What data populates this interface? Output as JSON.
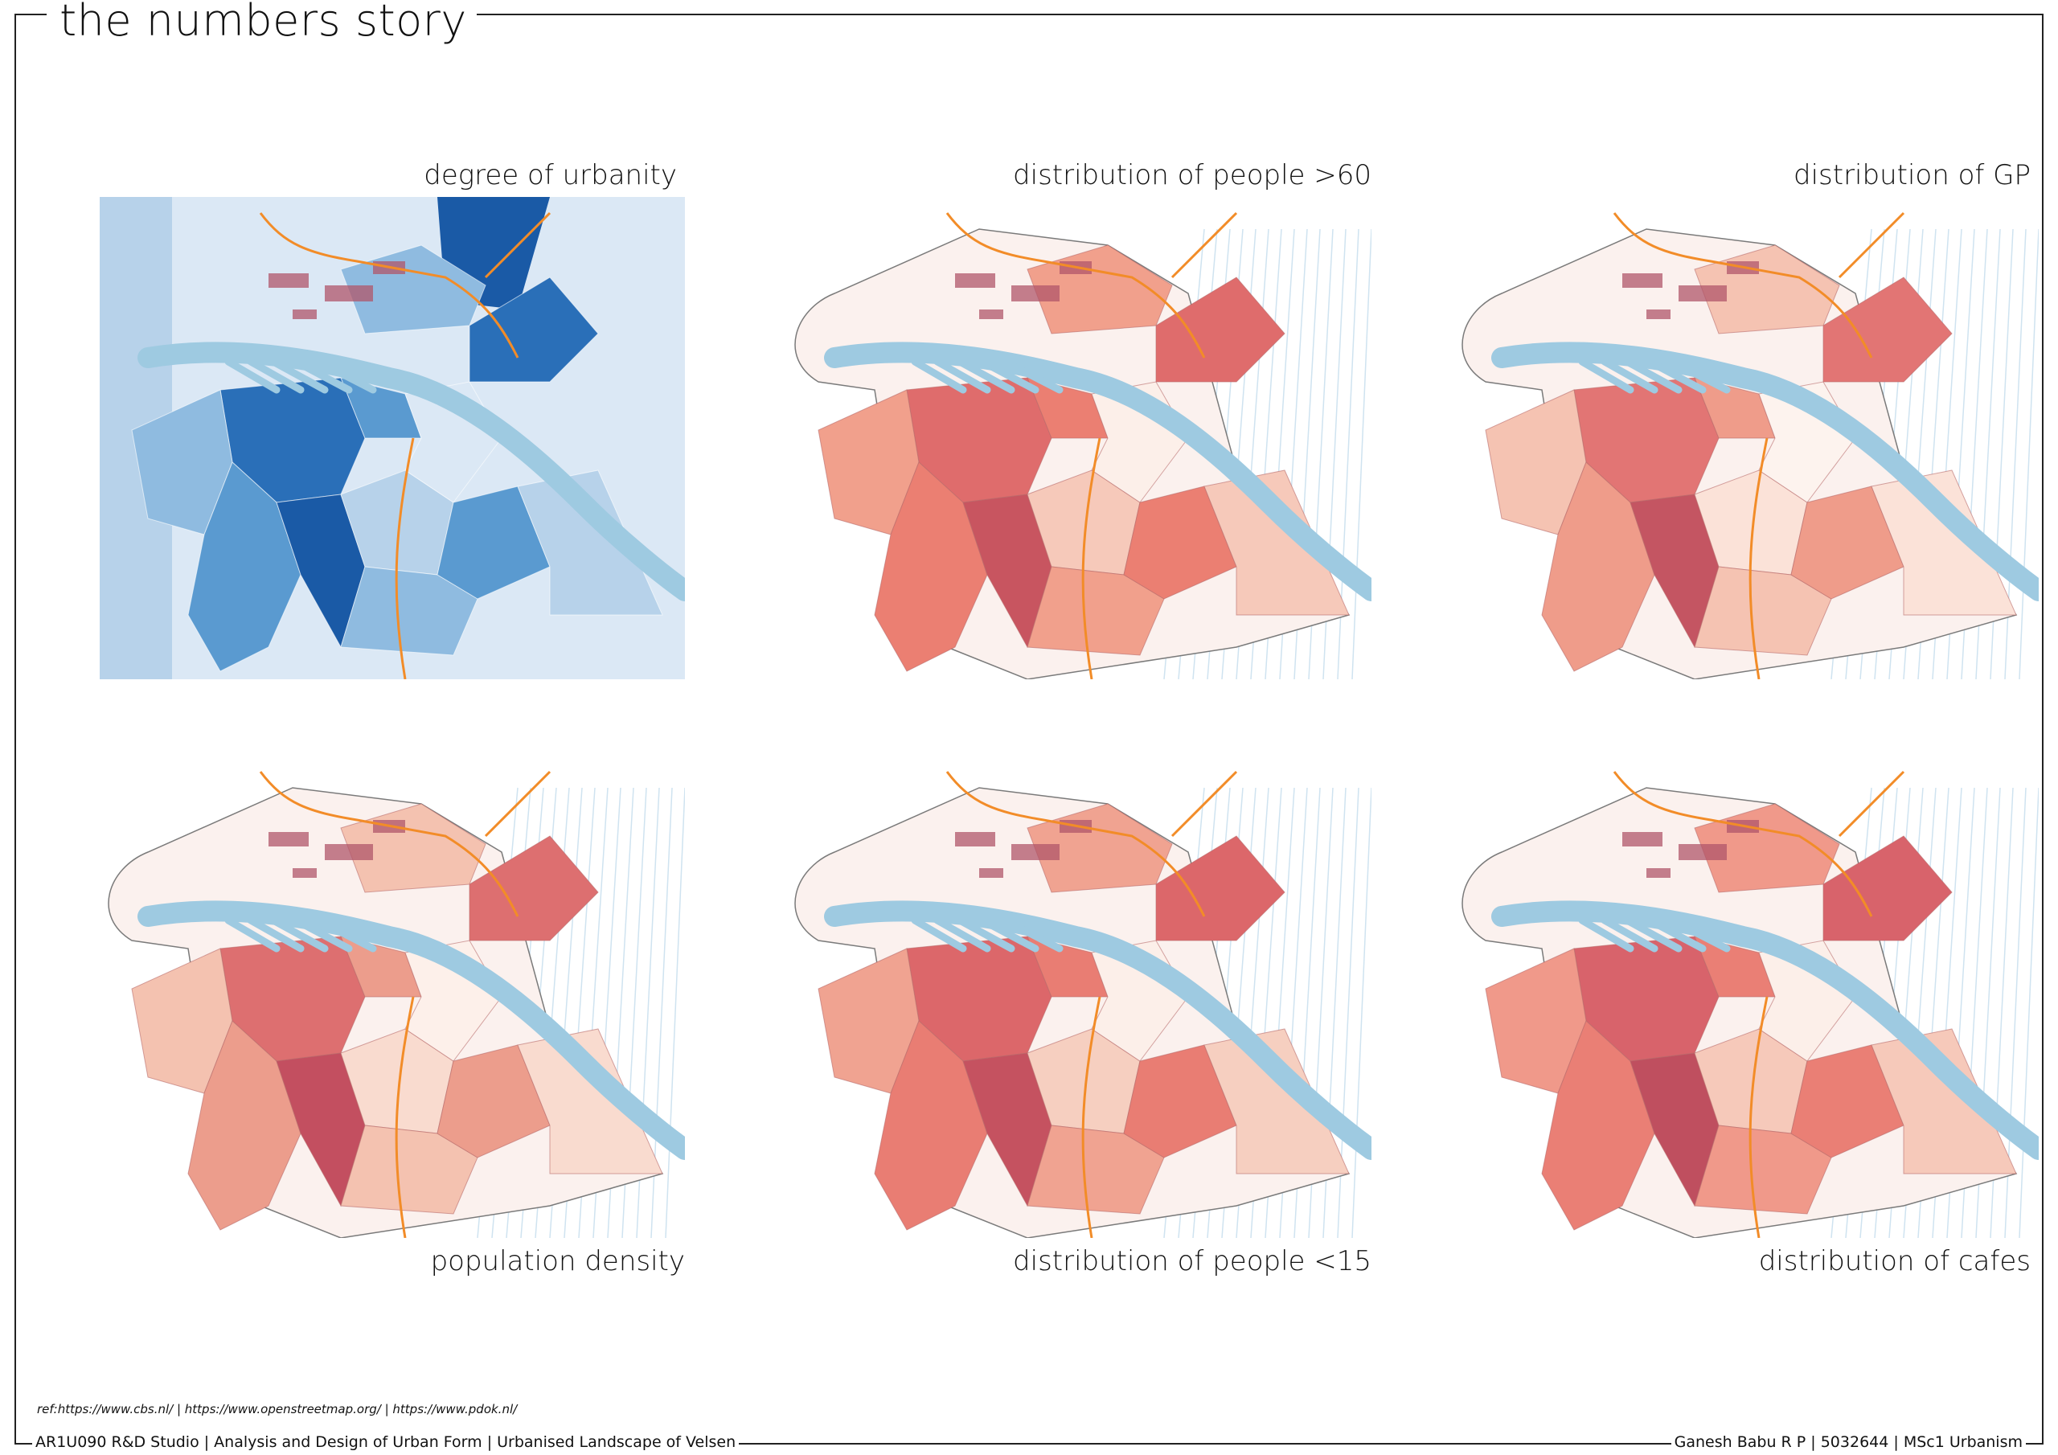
{
  "title": "the numbers story",
  "maps": [
    {
      "id": "urbanity",
      "label": "degree of urbanity",
      "scheme": "blue",
      "colors": [
        "#dbe8f5",
        "#b7d2ea",
        "#8fbbe0",
        "#5a9ad0",
        "#2a6fb8",
        "#1a5aa6"
      ]
    },
    {
      "id": "people60",
      "label": "distribution of people >60",
      "scheme": "red",
      "colors": [
        "#fcefe9",
        "#f6c9ba",
        "#f1a08c",
        "#eb7f72",
        "#df6c6c",
        "#c85560"
      ]
    },
    {
      "id": "gp",
      "label": "distribution of GP",
      "scheme": "red",
      "colors": [
        "#fdf3ee",
        "#fbe2d8",
        "#f5c3b2",
        "#ef9c8a",
        "#e27574",
        "#c45562"
      ]
    },
    {
      "id": "popdensity",
      "label": "population density",
      "scheme": "red",
      "colors": [
        "#fdf0ea",
        "#f9dbcf",
        "#f4c2b0",
        "#ec9d8c",
        "#dd6f70",
        "#c34f60"
      ]
    },
    {
      "id": "people15",
      "label": "distribution of people <15",
      "scheme": "red",
      "colors": [
        "#fcefe9",
        "#f6cfc0",
        "#f0a391",
        "#e97d73",
        "#dc676a",
        "#c55260"
      ]
    },
    {
      "id": "cafes",
      "label": "distribution of cafes",
      "scheme": "red",
      "colors": [
        "#fcefe9",
        "#f6c9ba",
        "#f0998a",
        "#ea7f75",
        "#d8636b",
        "#bf4f5f"
      ]
    }
  ],
  "palette": {
    "water": "#9ecae1",
    "rail": "#f28c28",
    "industry": "#b0566a",
    "outline": "#7a7a7a",
    "lightwater": "#cfe3f0"
  },
  "footer": {
    "references": "ref:https://www.cbs.nl/ | https://www.openstreetmap.org/ | https://www.pdok.nl/",
    "left": "AR1U090 R&D Studio | Analysis and Design of Urban Form | Urbanised Landscape of Velsen",
    "right": "Ganesh Babu R P | 5032644 | MSc1 Urbanism"
  }
}
